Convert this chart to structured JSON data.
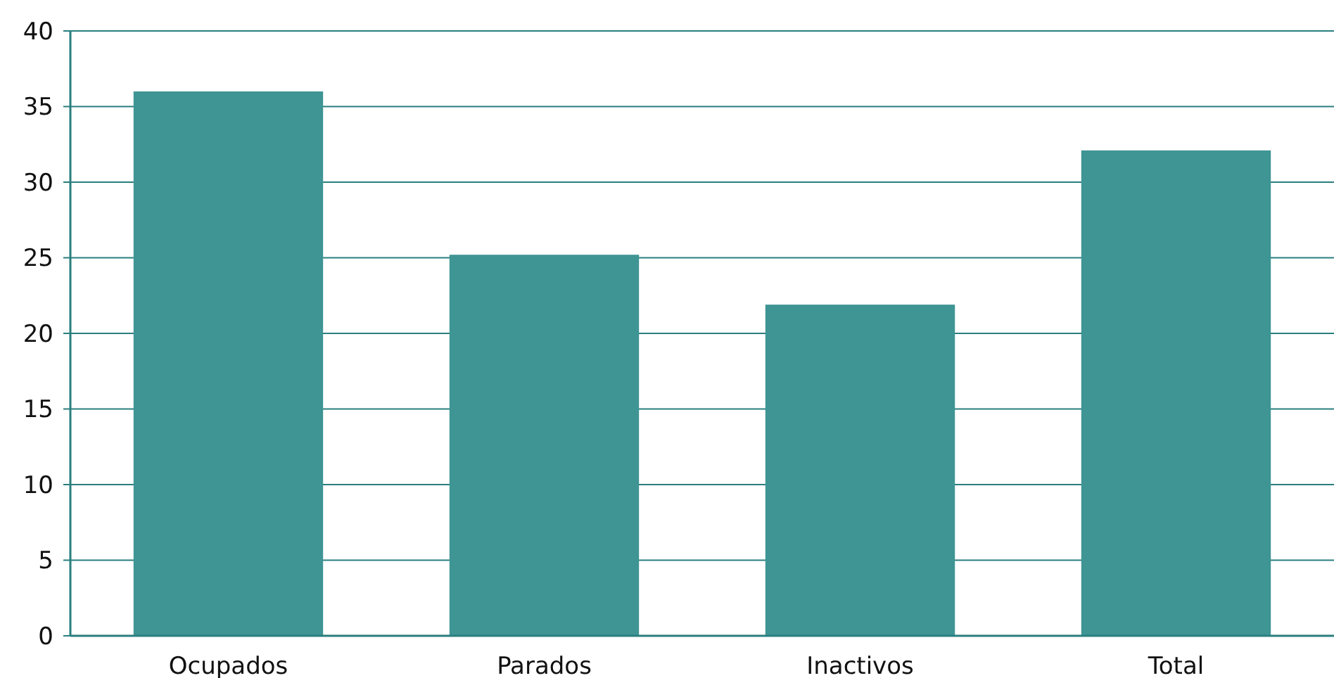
{
  "chart_data": {
    "type": "bar",
    "categories": [
      "Ocupados",
      "Parados",
      "Inactivos",
      "Total"
    ],
    "values": [
      36.0,
      25.2,
      21.9,
      32.1
    ],
    "color": "#3f9494",
    "ylim": [
      0,
      40
    ],
    "yticks": [
      0,
      5,
      10,
      15,
      20,
      25,
      30,
      35,
      40
    ],
    "grid": "y"
  }
}
